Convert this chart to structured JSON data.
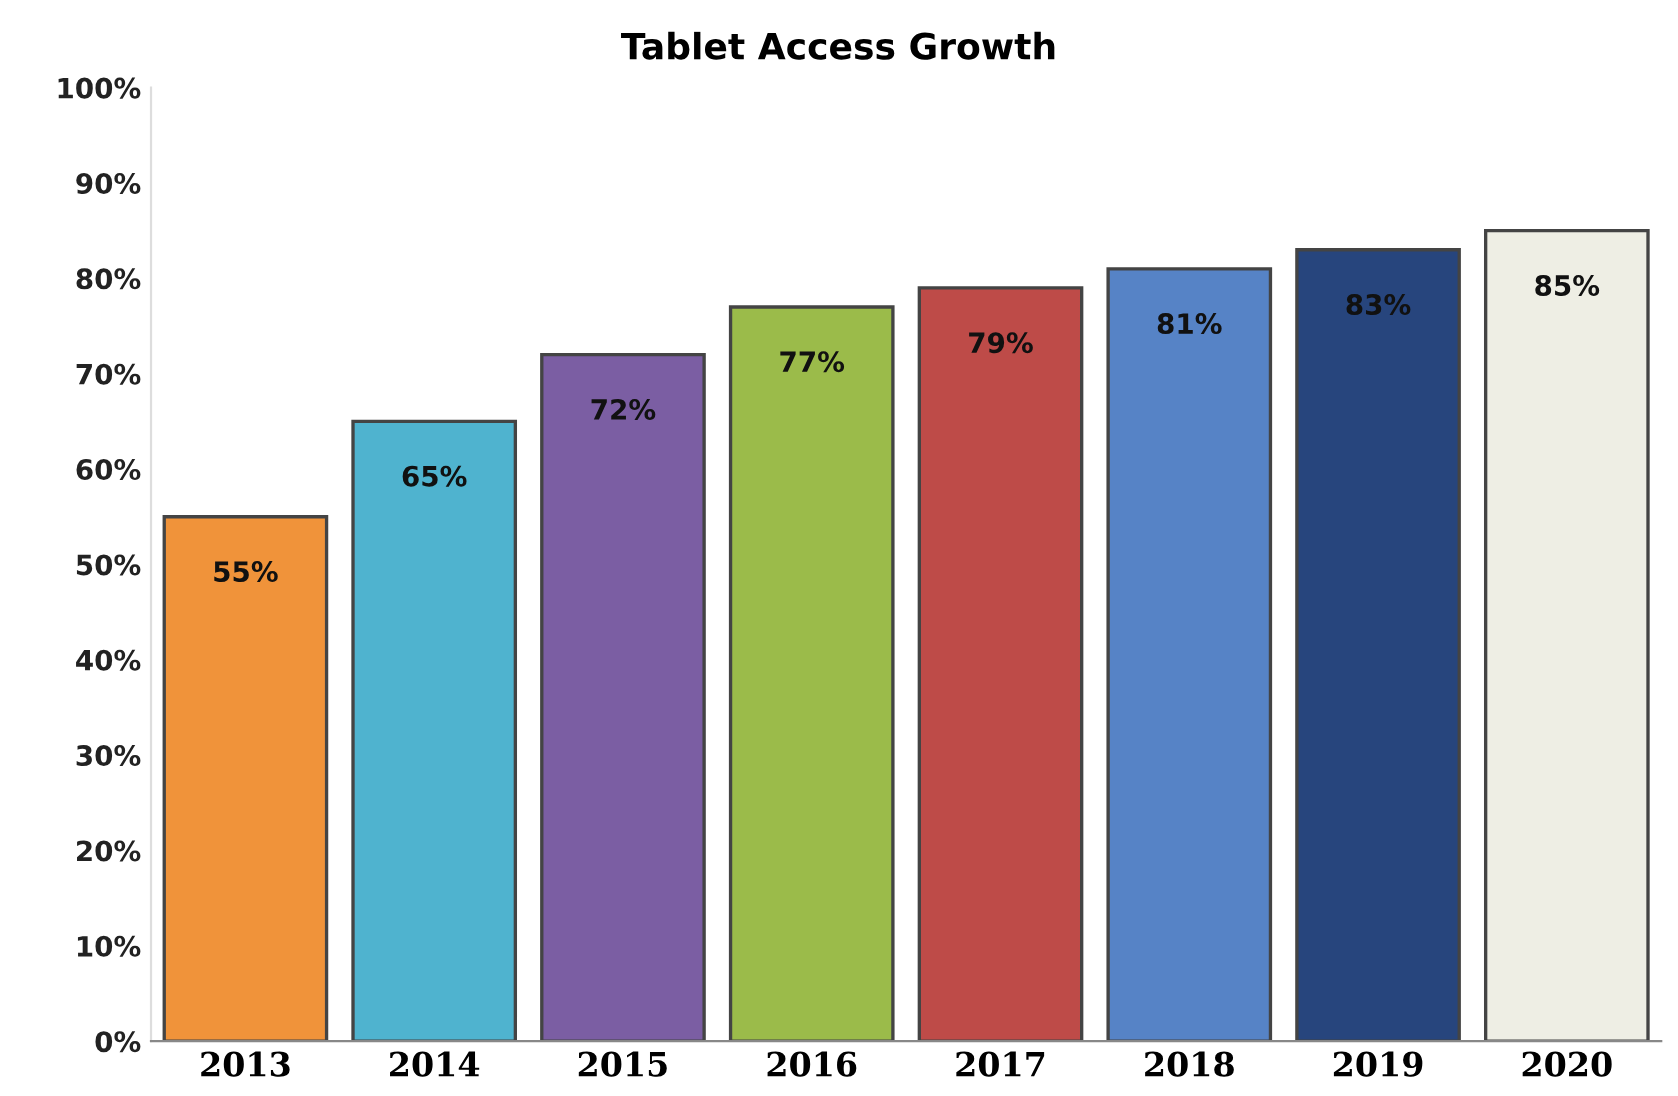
{
  "chart_data": {
    "type": "bar",
    "title": "Tablet Access Growth",
    "categories": [
      "2013",
      "2014",
      "2015",
      "2016",
      "2017",
      "2018",
      "2019",
      "2020"
    ],
    "values": [
      55,
      65,
      72,
      77,
      79,
      81,
      83,
      85
    ],
    "colors": [
      "#f0933a",
      "#4fb3cf",
      "#7b5ea3",
      "#9bbb4a",
      "#be4b48",
      "#5683c6",
      "#27457d",
      "#eeeee4"
    ],
    "value_labels": [
      "55%",
      "65%",
      "72%",
      "77%",
      "79%",
      "81%",
      "83%",
      "85%"
    ],
    "ylim": [
      0,
      100
    ],
    "yticks": [
      {
        "value": 0,
        "label": "0%"
      },
      {
        "value": 10,
        "label": "10%"
      },
      {
        "value": 20,
        "label": "20%"
      },
      {
        "value": 30,
        "label": "30%"
      },
      {
        "value": 40,
        "label": "40%"
      },
      {
        "value": 50,
        "label": "50%"
      },
      {
        "value": 60,
        "label": "60%"
      },
      {
        "value": 70,
        "label": "70%"
      },
      {
        "value": 80,
        "label": "80%"
      },
      {
        "value": 90,
        "label": "90%"
      },
      {
        "value": 100,
        "label": "100%"
      }
    ],
    "legend": false
  }
}
